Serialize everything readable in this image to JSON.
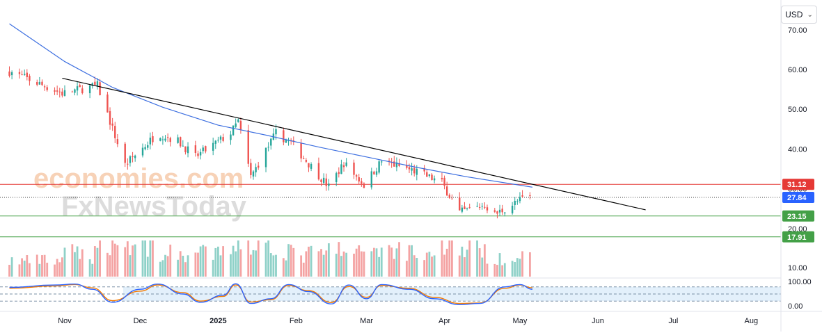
{
  "currency_selector": {
    "label": "USD",
    "chevron_icon": "chevron-down-icon"
  },
  "watermark": {
    "line1": "economies.com",
    "line2": "FxNewsToday"
  },
  "colors": {
    "up": "#26a69a",
    "down": "#ef5350",
    "up_volume": "#8fd1c8",
    "down_volume": "#f4a3a3",
    "moving_average": "#3d6fe0",
    "trendline": "#000000",
    "resistance": "#e53935",
    "support": "#43a047",
    "last_price": "#2962ff",
    "stoch_k": "#2962ff",
    "stoch_d": "#f57c00",
    "stoch_band": "#e3f0fb"
  },
  "chart_data": [
    {
      "type": "candlestick",
      "title": "",
      "x_axis": {
        "tick_labels": [
          "Nov",
          "Dec",
          "2025",
          "Feb",
          "Mar",
          "Apr",
          "May",
          "Jun",
          "Jul",
          "Aug"
        ]
      },
      "y_axis": {
        "tick_labels": [
          "70.00",
          "60.00",
          "50.00",
          "40.00",
          "30.00",
          "20.00"
        ],
        "range": [
          17,
          73
        ]
      },
      "series": [
        {
          "kind": "candles",
          "segments": [
            {
              "from": "2024-10-10",
              "to": "2024-10-31",
              "start": 59.5,
              "end": 54.0,
              "vol": 0.7
            },
            {
              "from": "2024-10-31",
              "to": "2024-11-14",
              "start": 54.0,
              "end": 56.0,
              "vol": 1.0
            },
            {
              "from": "2024-11-14",
              "to": "2024-11-25",
              "start": 56.0,
              "end": 36.0,
              "vol": 1.6
            },
            {
              "from": "2024-11-25",
              "to": "2024-12-08",
              "start": 36.0,
              "end": 44.0,
              "vol": 1.4
            },
            {
              "from": "2024-12-08",
              "to": "2024-12-16",
              "start": 44.0,
              "end": 42.0,
              "vol": 1.0
            },
            {
              "from": "2024-12-16",
              "to": "2024-12-23",
              "start": 42.0,
              "end": 38.0,
              "vol": 1.0
            },
            {
              "from": "2024-12-23",
              "to": "2025-01-06",
              "start": 38.0,
              "end": 44.0,
              "vol": 1.0
            },
            {
              "from": "2025-01-06",
              "to": "2025-01-09",
              "start": 44.0,
              "end": 47.0,
              "vol": 1.5
            },
            {
              "from": "2025-01-09",
              "to": "2025-01-14",
              "start": 47.0,
              "end": 33.0,
              "vol": 1.8
            },
            {
              "from": "2025-01-14",
              "to": "2025-01-24",
              "start": 33.0,
              "end": 44.0,
              "vol": 1.5
            },
            {
              "from": "2025-01-24",
              "to": "2025-01-30",
              "start": 44.0,
              "end": 41.5,
              "vol": 1.2
            },
            {
              "from": "2025-01-30",
              "to": "2025-02-14",
              "start": 41.5,
              "end": 30.5,
              "vol": 1.0
            },
            {
              "from": "2025-02-14",
              "to": "2025-02-20",
              "start": 30.5,
              "end": 36.5,
              "vol": 1.2
            },
            {
              "from": "2025-02-20",
              "to": "2025-02-28",
              "start": 36.5,
              "end": 31.0,
              "vol": 1.0
            },
            {
              "from": "2025-02-28",
              "to": "2025-03-07",
              "start": 31.0,
              "end": 37.0,
              "vol": 1.3
            },
            {
              "from": "2025-03-07",
              "to": "2025-03-20",
              "start": 37.0,
              "end": 34.5,
              "vol": 1.2
            },
            {
              "from": "2025-03-20",
              "to": "2025-03-31",
              "start": 34.5,
              "end": 31.5,
              "vol": 1.0
            },
            {
              "from": "2025-03-31",
              "to": "2025-04-07",
              "start": 31.5,
              "end": 24.0,
              "vol": 1.6
            },
            {
              "from": "2025-04-07",
              "to": "2025-04-17",
              "start": 24.0,
              "end": 26.0,
              "vol": 1.3
            },
            {
              "from": "2025-04-17",
              "to": "2025-04-21",
              "start": 26.0,
              "end": 23.5,
              "vol": 1.0
            },
            {
              "from": "2025-04-21",
              "to": "2025-05-02",
              "start": 23.5,
              "end": 27.5,
              "vol": 0.9
            },
            {
              "from": "2025-05-02",
              "to": "2025-05-06",
              "start": 27.5,
              "end": 27.84,
              "vol": 0.8
            }
          ]
        },
        {
          "kind": "moving_average",
          "points": [
            [
              "2024-10-10",
              71.5
            ],
            [
              "2024-11-01",
              62
            ],
            [
              "2024-11-20",
              55.5
            ],
            [
              "2024-12-10",
              50.5
            ],
            [
              "2025-01-01",
              46
            ],
            [
              "2025-01-20",
              43.5
            ],
            [
              "2025-02-10",
              40.5
            ],
            [
              "2025-03-01",
              38
            ],
            [
              "2025-03-20",
              35.5
            ],
            [
              "2025-04-10",
              33
            ],
            [
              "2025-05-06",
              30.4
            ]
          ]
        },
        {
          "kind": "trendline",
          "from": [
            "2024-10-31",
            57.8
          ],
          "to": [
            "2025-06-20",
            24.7
          ]
        }
      ],
      "horizontal_levels": [
        {
          "label": "31.12",
          "value": 31.12,
          "style": "resistance"
        },
        {
          "label": "27.84",
          "value": 27.84,
          "style": "last_price"
        },
        {
          "label": "23.15",
          "value": 23.15,
          "style": "support"
        },
        {
          "label": "17.91",
          "value": 17.91,
          "style": "support"
        }
      ],
      "volume_axis": {
        "tick_labels": [
          "10.00"
        ]
      }
    },
    {
      "type": "line",
      "subtype": "stochastic",
      "y_axis": {
        "tick_labels": [
          "100.00",
          "0.00"
        ],
        "range": [
          0,
          100
        ]
      },
      "band": [
        20,
        80
      ],
      "points_k": [
        [
          "2024-10-10",
          78
        ],
        [
          "2024-10-28",
          88
        ],
        [
          "2024-11-05",
          92
        ],
        [
          "2024-11-12",
          70
        ],
        [
          "2024-11-20",
          15
        ],
        [
          "2024-12-01",
          70
        ],
        [
          "2024-12-08",
          92
        ],
        [
          "2024-12-18",
          50
        ],
        [
          "2024-12-25",
          15
        ],
        [
          "2025-01-03",
          45
        ],
        [
          "2025-01-08",
          93
        ],
        [
          "2025-01-14",
          10
        ],
        [
          "2025-01-22",
          30
        ],
        [
          "2025-01-29",
          90
        ],
        [
          "2025-02-06",
          60
        ],
        [
          "2025-02-15",
          8
        ],
        [
          "2025-02-22",
          88
        ],
        [
          "2025-03-01",
          30
        ],
        [
          "2025-03-07",
          90
        ],
        [
          "2025-03-18",
          70
        ],
        [
          "2025-03-28",
          30
        ],
        [
          "2025-04-07",
          5
        ],
        [
          "2025-04-15",
          10
        ],
        [
          "2025-04-25",
          80
        ],
        [
          "2025-05-01",
          90
        ],
        [
          "2025-05-06",
          70
        ]
      ],
      "points_d": [
        [
          "2024-10-10",
          74
        ],
        [
          "2024-10-28",
          84
        ],
        [
          "2024-11-05",
          90
        ],
        [
          "2024-11-12",
          76
        ],
        [
          "2024-11-20",
          22
        ],
        [
          "2024-12-01",
          62
        ],
        [
          "2024-12-08",
          88
        ],
        [
          "2024-12-18",
          56
        ],
        [
          "2024-12-25",
          20
        ],
        [
          "2025-01-03",
          40
        ],
        [
          "2025-01-08",
          88
        ],
        [
          "2025-01-14",
          16
        ],
        [
          "2025-01-22",
          26
        ],
        [
          "2025-01-29",
          86
        ],
        [
          "2025-02-06",
          64
        ],
        [
          "2025-02-15",
          14
        ],
        [
          "2025-02-22",
          82
        ],
        [
          "2025-03-01",
          36
        ],
        [
          "2025-03-07",
          86
        ],
        [
          "2025-03-18",
          74
        ],
        [
          "2025-03-28",
          36
        ],
        [
          "2025-04-07",
          10
        ],
        [
          "2025-04-15",
          12
        ],
        [
          "2025-04-25",
          74
        ],
        [
          "2025-05-01",
          88
        ],
        [
          "2025-05-06",
          76
        ]
      ]
    }
  ]
}
